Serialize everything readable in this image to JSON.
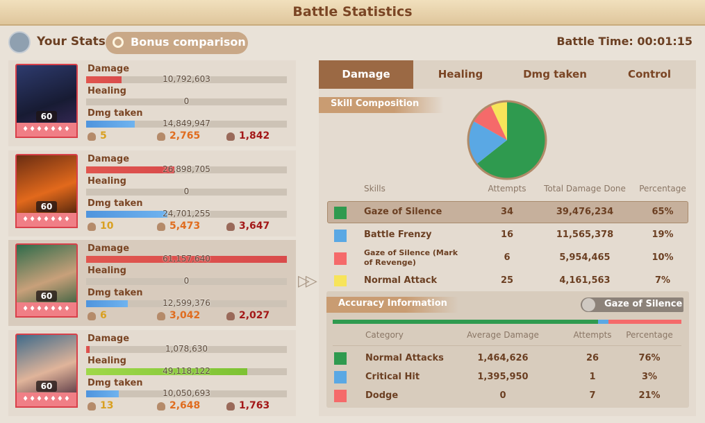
{
  "header": {
    "title": "Battle Statistics"
  },
  "toolbar": {
    "your_stats": "Your Stats",
    "bonus_comparison": "Bonus comparison",
    "battle_time": "Battle Time: 00:01:15"
  },
  "heroes": [
    {
      "level": 60,
      "stats": [
        {
          "label": "Damage",
          "value": 10792603,
          "value_label": "10,792,603"
        },
        {
          "label": "Healing",
          "value": 0,
          "value_label": "0"
        },
        {
          "label": "Dmg taken",
          "value": 14849947,
          "value_label": "14,849,947"
        }
      ],
      "counts": [
        "5",
        "2,765",
        "1,842"
      ]
    },
    {
      "level": 60,
      "stats": [
        {
          "label": "Damage",
          "value": 26898705,
          "value_label": "26,898,705"
        },
        {
          "label": "Healing",
          "value": 0,
          "value_label": "0"
        },
        {
          "label": "Dmg taken",
          "value": 24701255,
          "value_label": "24,701,255"
        }
      ],
      "counts": [
        "10",
        "5,473",
        "3,647"
      ]
    },
    {
      "level": 60,
      "stats": [
        {
          "label": "Damage",
          "value": 61157640,
          "value_label": "61,157,640"
        },
        {
          "label": "Healing",
          "value": 0,
          "value_label": "0"
        },
        {
          "label": "Dmg taken",
          "value": 12599376,
          "value_label": "12,599,376"
        }
      ],
      "counts": [
        "6",
        "3,042",
        "2,027"
      ]
    },
    {
      "level": 60,
      "stats": [
        {
          "label": "Damage",
          "value": 1078630,
          "value_label": "1,078,630"
        },
        {
          "label": "Healing",
          "value": 49118122,
          "value_label": "49,118,122"
        },
        {
          "label": "Dmg taken",
          "value": 10050693,
          "value_label": "10,050,693"
        }
      ],
      "counts": [
        "13",
        "2,648",
        "1,763"
      ]
    }
  ],
  "tabs": [
    "Damage",
    "Healing",
    "Dmg taken",
    "Control"
  ],
  "skill_composition": {
    "title": "Skill Composition",
    "columns": [
      "Skills",
      "Attempts",
      "Total Damage Done",
      "Percentage"
    ],
    "rows": [
      {
        "skill": "Gaze of Silence",
        "color": "#2f9a4f",
        "attempts": 34,
        "total_damage": "39,476,234",
        "percentage": 65,
        "percentage_label": "65%"
      },
      {
        "skill": "Battle Frenzy",
        "color": "#5aa8e4",
        "attempts": 16,
        "total_damage": "11,565,378",
        "percentage": 19,
        "percentage_label": "19%"
      },
      {
        "skill": "Gaze of Silence (Mark of Revenge)",
        "color": "#f56a6a",
        "attempts": 6,
        "total_damage": "5,954,465",
        "percentage": 10,
        "percentage_label": "10%"
      },
      {
        "skill": "Normal Attack",
        "color": "#f7e45a",
        "attempts": 25,
        "total_damage": "4,161,563",
        "percentage": 7,
        "percentage_label": "7%"
      }
    ]
  },
  "accuracy": {
    "title": "Accuracy Information",
    "skill": "Gaze of Silence",
    "columns": [
      "Category",
      "Average Damage",
      "Attempts",
      "Percentage"
    ],
    "rows": [
      {
        "category": "Normal Attacks",
        "color": "#2f9a4f",
        "average_damage": "1,464,626",
        "attempts": 26,
        "percentage": 76,
        "percentage_label": "76%"
      },
      {
        "category": "Critical Hit",
        "color": "#5aa8e4",
        "average_damage": "1,395,950",
        "attempts": 1,
        "percentage": 3,
        "percentage_label": "3%"
      },
      {
        "category": "Dodge",
        "color": "#f56a6a",
        "average_damage": "0",
        "attempts": 7,
        "percentage": 21,
        "percentage_label": "21%"
      }
    ]
  }
}
